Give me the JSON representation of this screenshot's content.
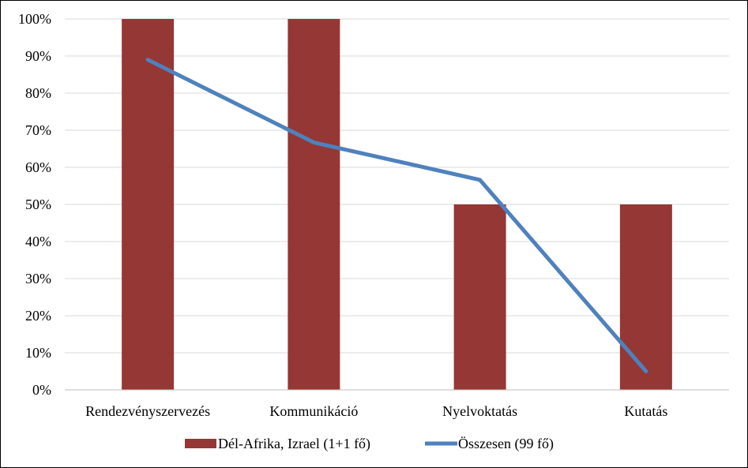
{
  "chart_data": {
    "type": "bar",
    "categories": [
      "Rendezvényszervezés",
      "Kommunikáció",
      "Nyelvoktatás",
      "Kutatás"
    ],
    "series": [
      {
        "name": "Dél-Afrika, Izrael (1+1 fő)",
        "kind": "bar",
        "color": "#953735",
        "values": [
          100,
          100,
          50,
          50
        ]
      },
      {
        "name": "Összesen (99 fő)",
        "kind": "line",
        "color": "#4F81BD",
        "values": [
          89,
          66.7,
          56.6,
          5
        ]
      }
    ],
    "yticks": [
      "0%",
      "10%",
      "20%",
      "30%",
      "40%",
      "50%",
      "60%",
      "70%",
      "80%",
      "90%",
      "100%"
    ],
    "ylim": [
      0,
      100
    ],
    "grid": true,
    "legend_position": "bottom",
    "title": "",
    "xlabel": "",
    "ylabel": ""
  }
}
